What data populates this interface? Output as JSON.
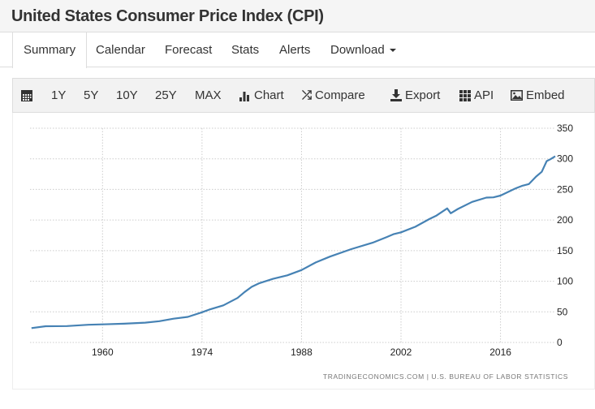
{
  "header": {
    "title": "United States Consumer Price Index (CPI)"
  },
  "tabs": [
    {
      "label": "Summary"
    },
    {
      "label": "Calendar"
    },
    {
      "label": "Forecast"
    },
    {
      "label": "Stats"
    },
    {
      "label": "Alerts"
    },
    {
      "label": "Download"
    }
  ],
  "toolbar": {
    "ranges": [
      "1Y",
      "5Y",
      "10Y",
      "25Y",
      "MAX"
    ],
    "chart": "Chart",
    "compare": "Compare",
    "export": "Export",
    "api": "API",
    "embed": "Embed"
  },
  "chart_data": {
    "type": "line",
    "title": "",
    "xlabel": "",
    "ylabel": "",
    "xlim": [
      1949.8,
      2023.7
    ],
    "ylim": [
      0,
      350
    ],
    "x_ticks": [
      1960,
      1974,
      1988,
      2002,
      2016
    ],
    "y_ticks": [
      0,
      50,
      100,
      150,
      200,
      250,
      300,
      350
    ],
    "grid": true,
    "line_color": "#4682b4",
    "source": "TRADINGECONOMICS.COM | U.S. BUREAU OF LABOR STATISTICS",
    "series": [
      {
        "name": "CPI",
        "x": [
          1950,
          1952,
          1955,
          1958,
          1960,
          1963,
          1966,
          1968,
          1970,
          1972,
          1974,
          1975,
          1977,
          1979,
          1980,
          1981,
          1982,
          1984,
          1986,
          1988,
          1990,
          1992,
          1995,
          1998,
          2000,
          2001,
          2002,
          2004,
          2006,
          2007,
          2008.5,
          2009,
          2010,
          2012,
          2014,
          2015,
          2016,
          2018,
          2019,
          2020,
          2021,
          2021.8,
          2022.5,
          2023,
          2023.7
        ],
        "y": [
          23.5,
          26.5,
          26.8,
          28.9,
          29.6,
          30.6,
          32.4,
          34.8,
          38.8,
          41.8,
          49.3,
          53.5,
          60.6,
          72.6,
          82.4,
          90.9,
          96.5,
          103.9,
          109.6,
          118.3,
          130.7,
          140.3,
          152.4,
          163.0,
          172.2,
          177.1,
          179.9,
          188.9,
          201.6,
          207.3,
          219.0,
          211.1,
          218.1,
          229.6,
          236.7,
          237.0,
          240.0,
          251.1,
          255.7,
          258.8,
          271.0,
          278.8,
          296.3,
          299.2,
          304.1
        ]
      }
    ]
  }
}
